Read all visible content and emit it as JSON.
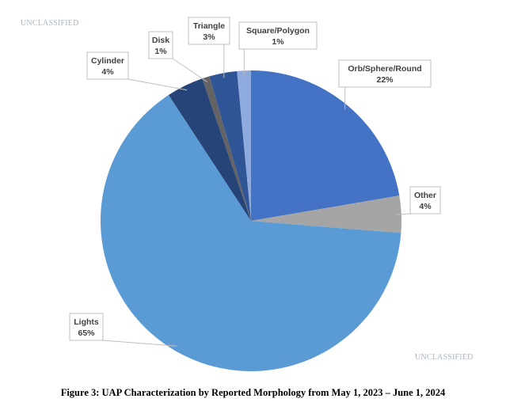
{
  "markings": {
    "top": "UNCLASSIFIED",
    "bottom": "UNCLASSIFIED"
  },
  "caption": "Figure 3:  UAP Characterization by Reported Morphology from May 1, 2023 – June 1, 2024",
  "chart_data": {
    "type": "pie",
    "title": "",
    "slices": [
      {
        "label": "Orb/Sphere/Round",
        "value_label": "22%",
        "value": 22.5,
        "color": "#4472c4"
      },
      {
        "label": "Other",
        "value_label": "4%",
        "value": 4,
        "color": "#a5a5a5"
      },
      {
        "label": "Lights",
        "value_label": "65%",
        "value": 65,
        "color": "#5b9bd5"
      },
      {
        "label": "Cylinder",
        "value_label": "4%",
        "value": 4,
        "color": "#264478"
      },
      {
        "label": "Disk",
        "value_label": "1%",
        "value": 0.8,
        "color": "#636363"
      },
      {
        "label": "Triangle",
        "value_label": "3%",
        "value": 3,
        "color": "#2f5597"
      },
      {
        "label": "Square/Polygon",
        "value_label": "1%",
        "value": 1.5,
        "color": "#8faadc"
      }
    ],
    "start": "12 o'clock, clockwise",
    "legend": "none (callout data labels)"
  }
}
